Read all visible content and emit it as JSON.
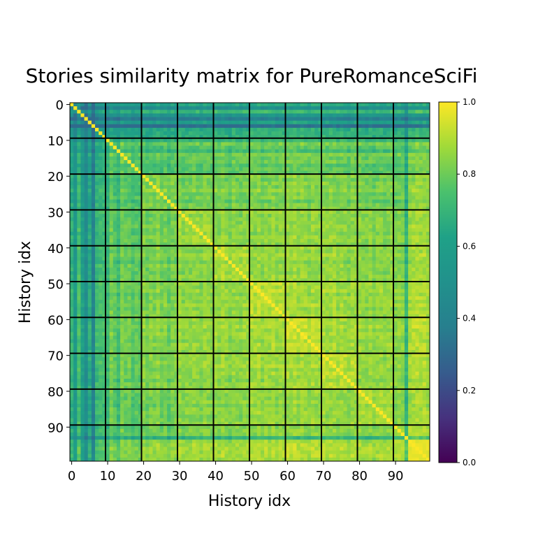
{
  "chart_data": {
    "type": "heatmap",
    "title": "Stories similarity matrix for PureRomanceSciFi",
    "xlabel": "History idx",
    "ylabel": "History idx",
    "n": 100,
    "x_ticks": [
      0,
      10,
      20,
      30,
      40,
      50,
      60,
      70,
      80,
      90
    ],
    "y_ticks": [
      0,
      10,
      20,
      30,
      40,
      50,
      60,
      70,
      80,
      90
    ],
    "x_tick_labels": [
      "0",
      "10",
      "20",
      "30",
      "40",
      "50",
      "60",
      "70",
      "80",
      "90"
    ],
    "y_tick_labels": [
      "0",
      "10",
      "20",
      "30",
      "40",
      "50",
      "60",
      "70",
      "80",
      "90"
    ],
    "group_boundaries": [
      10,
      20,
      30,
      40,
      50,
      60,
      70,
      80,
      90
    ],
    "colormap": "viridis",
    "vmin": 0.0,
    "vmax": 1.0,
    "colorbar_ticks": [
      0.0,
      0.2,
      0.4,
      0.6,
      0.8,
      1.0
    ],
    "colorbar_tick_labels": [
      "0.0",
      "0.2",
      "0.4",
      "0.6",
      "0.8",
      "1.0"
    ],
    "diagonal_value": 1.0,
    "story_profile": [
      0.62,
      0.48,
      0.7,
      0.52,
      0.38,
      0.6,
      0.3,
      0.66,
      0.72,
      0.7,
      0.58,
      0.78,
      0.7,
      0.62,
      0.8,
      0.74,
      0.76,
      0.68,
      0.72,
      0.7,
      0.82,
      0.75,
      0.8,
      0.78,
      0.84,
      0.76,
      0.8,
      0.72,
      0.8,
      0.78,
      0.86,
      0.8,
      0.84,
      0.82,
      0.86,
      0.84,
      0.8,
      0.86,
      0.84,
      0.82,
      0.86,
      0.82,
      0.88,
      0.84,
      0.8,
      0.86,
      0.84,
      0.82,
      0.86,
      0.84,
      0.88,
      0.86,
      0.9,
      0.84,
      0.88,
      0.86,
      0.9,
      0.84,
      0.88,
      0.86,
      0.9,
      0.88,
      0.92,
      0.86,
      0.9,
      0.88,
      0.84,
      0.9,
      0.88,
      0.86,
      0.9,
      0.86,
      0.88,
      0.9,
      0.84,
      0.88,
      0.86,
      0.82,
      0.88,
      0.86,
      0.86,
      0.84,
      0.82,
      0.86,
      0.8,
      0.84,
      0.86,
      0.82,
      0.84,
      0.86,
      0.8,
      0.84,
      0.82,
      0.56,
      0.9,
      0.92,
      0.94,
      0.92,
      0.94,
      0.9
    ],
    "row_offsets": {
      "0": -0.08,
      "1": -0.15,
      "2": -0.05,
      "3": -0.12,
      "4": -0.18,
      "5": -0.1,
      "6": -0.2,
      "7": -0.08,
      "8": -0.1,
      "9": -0.08
    }
  }
}
